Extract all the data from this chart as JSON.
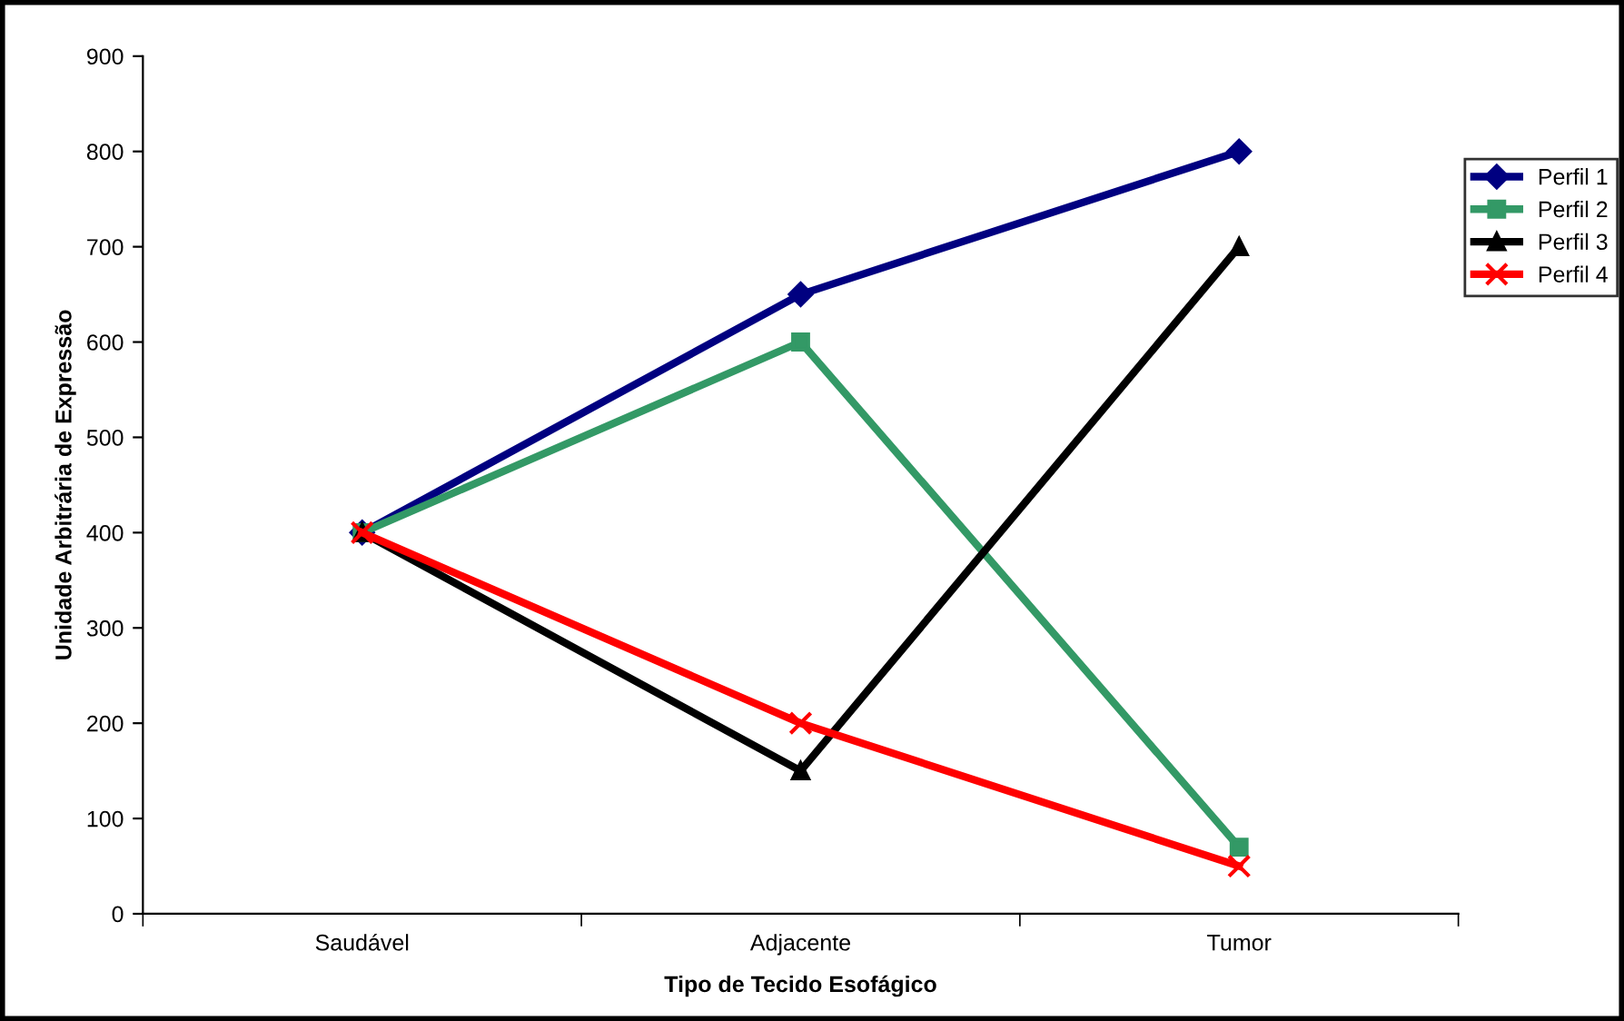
{
  "chart_data": {
    "type": "line",
    "xlabel": "Tipo de Tecido Esofágico",
    "ylabel": "Unidade Arbitrária de Expressão",
    "categories": [
      "Saudável",
      "Adjacente",
      "Tumor"
    ],
    "series": [
      {
        "name": "Perfil 1",
        "color": "#000080",
        "marker": "diamond",
        "values": [
          400,
          650,
          800
        ]
      },
      {
        "name": "Perfil 2",
        "color": "#339966",
        "marker": "square",
        "values": [
          400,
          600,
          70
        ]
      },
      {
        "name": "Perfil 3",
        "color": "#000000",
        "marker": "triangle",
        "values": [
          400,
          150,
          700
        ]
      },
      {
        "name": "Perfil 4",
        "color": "#ff0000",
        "marker": "cross",
        "values": [
          400,
          200,
          50
        ]
      }
    ],
    "ylim": [
      0,
      900
    ],
    "yticks": [
      0,
      100,
      200,
      300,
      400,
      500,
      600,
      700,
      800,
      900
    ],
    "grid": false,
    "legend": "right",
    "line_style": "solid"
  }
}
